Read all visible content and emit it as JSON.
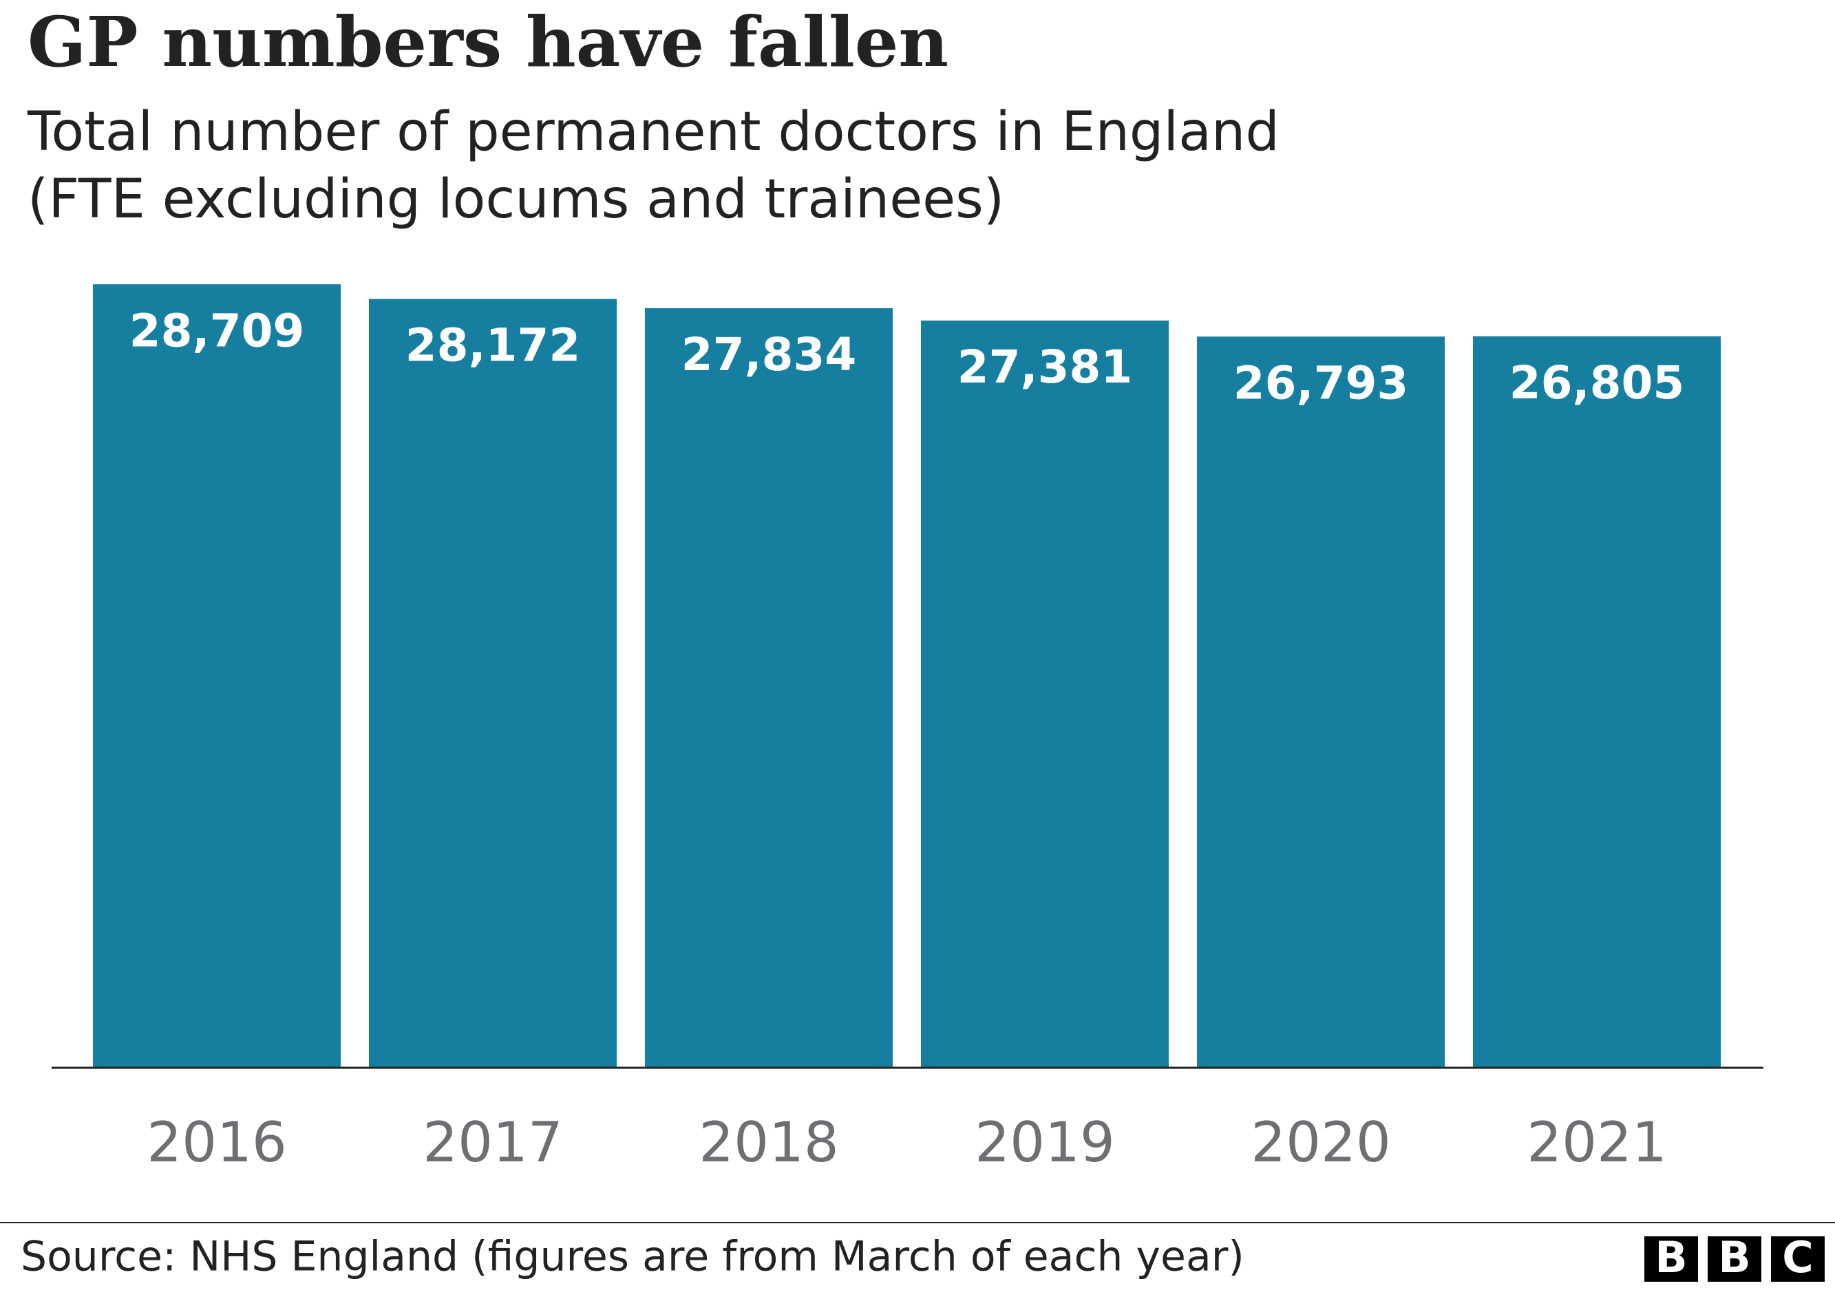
{
  "chart_data": {
    "type": "bar",
    "title": "GP numbers have fallen",
    "subtitle": [
      "Total number of permanent doctors in England",
      "(FTE excluding locums and trainees)"
    ],
    "categories": [
      "2016",
      "2017",
      "2018",
      "2019",
      "2020",
      "2021"
    ],
    "values": [
      28709,
      28172,
      27834,
      27381,
      26793,
      26805
    ],
    "value_labels": [
      "28,709",
      "28,172",
      "27,834",
      "27,381",
      "26,793",
      "26,805"
    ],
    "color": "#167f9f",
    "ylim": [
      0,
      30000
    ],
    "grid": false,
    "source": "Source: NHS England (figures are from March of each year)",
    "logo": [
      "B",
      "B",
      "C"
    ]
  }
}
